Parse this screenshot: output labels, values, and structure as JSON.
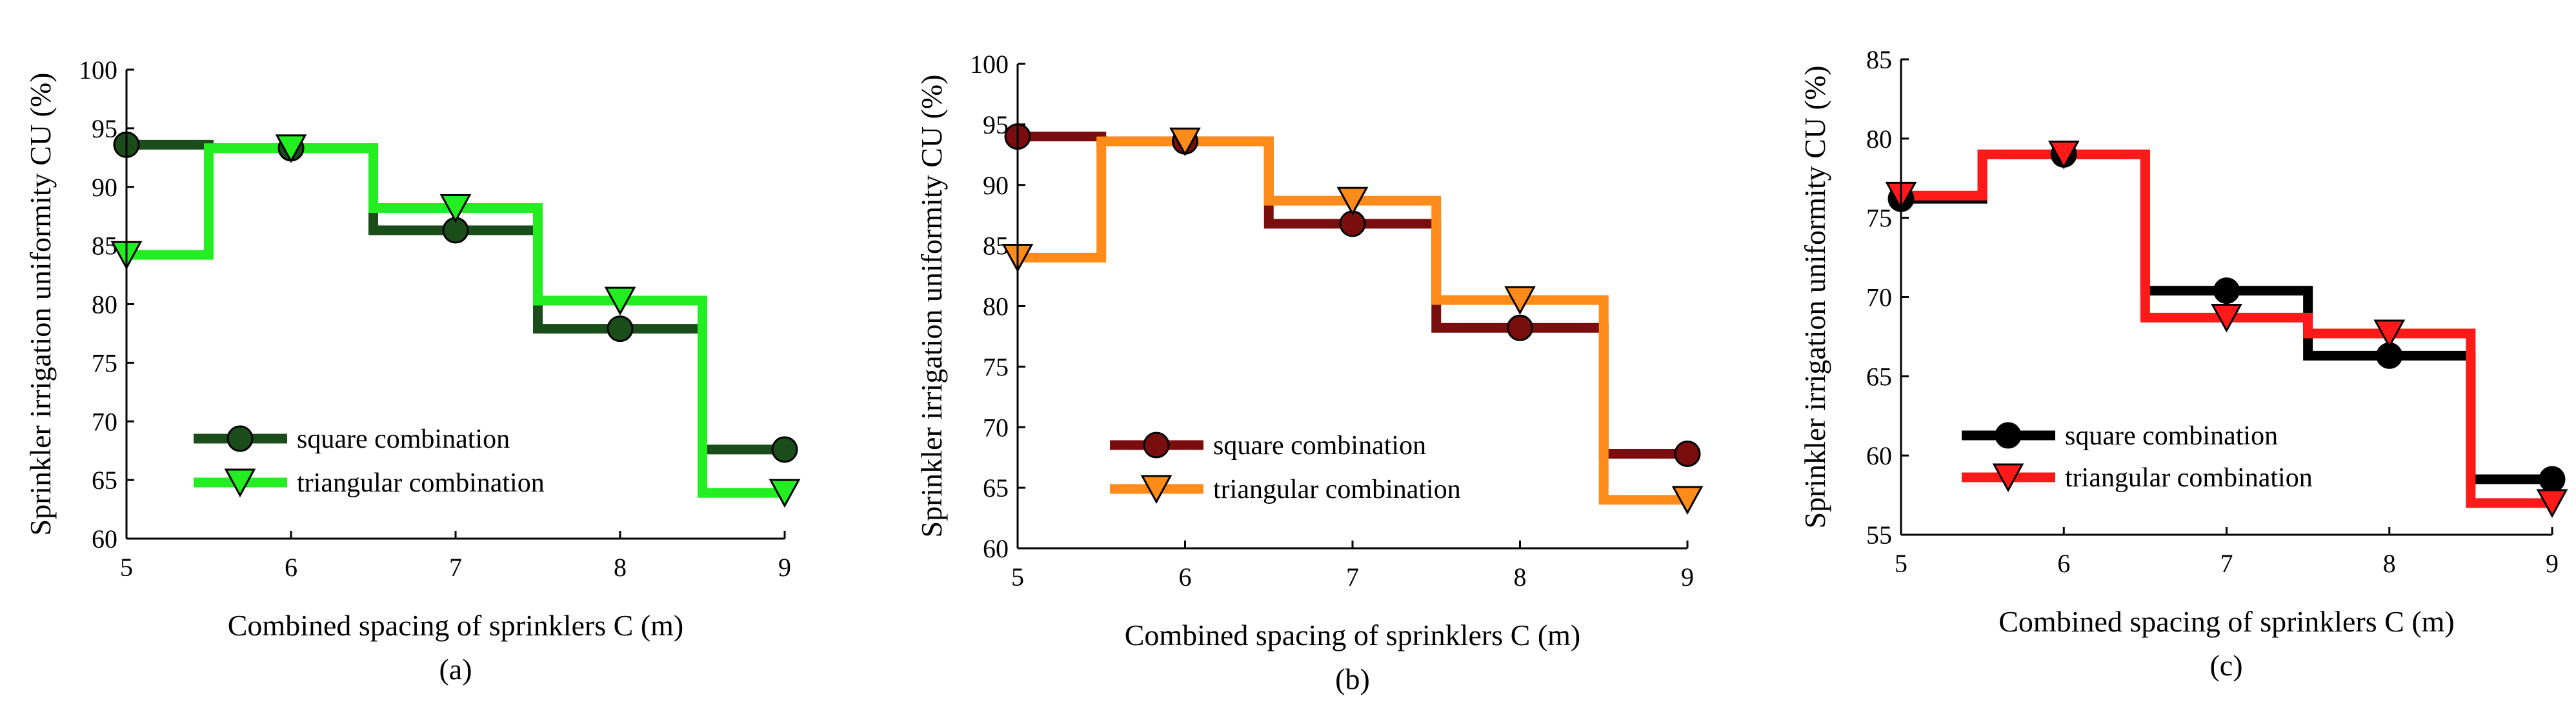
{
  "figure": {
    "xlabel": "Combined spacing of sprinklers C (m)",
    "ylabel": "Sprinkler irrigation uniformity CU (%)"
  },
  "chart_data": [
    {
      "type": "line",
      "step": "mid",
      "panel_label": "(a)",
      "xlabel": "Combined spacing of sprinklers C (m)",
      "ylabel": "Sprinkler irrigation uniformity CU (%)",
      "xlim": [
        5,
        9
      ],
      "ylim": [
        60,
        100
      ],
      "xticks": [
        5,
        6,
        7,
        8,
        9
      ],
      "yticks": [
        60,
        65,
        70,
        75,
        80,
        85,
        90,
        95,
        100
      ],
      "legend_position": "lower-left",
      "x": [
        5,
        6,
        7,
        8,
        9
      ],
      "series": [
        {
          "name": "square combination",
          "marker": "circle",
          "color": "#1b4d1b",
          "values": [
            93.6,
            93.3,
            86.3,
            77.9,
            67.6
          ]
        },
        {
          "name": "triangular combination",
          "marker": "triangle-down",
          "color": "#22ee22",
          "values": [
            84.2,
            93.3,
            88.2,
            80.3,
            63.9
          ]
        }
      ]
    },
    {
      "type": "line",
      "step": "mid",
      "panel_label": "(b)",
      "xlabel": "Combined spacing of sprinklers C (m)",
      "ylabel": "Sprinkler irrigation uniformity CU (%)",
      "xlim": [
        5,
        9
      ],
      "ylim": [
        60,
        100
      ],
      "xticks": [
        5,
        6,
        7,
        8,
        9
      ],
      "yticks": [
        60,
        65,
        70,
        75,
        80,
        85,
        90,
        95,
        100
      ],
      "legend_position": "lower-left",
      "x": [
        5,
        6,
        7,
        8,
        9
      ],
      "series": [
        {
          "name": "square combination",
          "marker": "circle",
          "color": "#7a0d0d",
          "values": [
            94.0,
            93.6,
            86.8,
            78.2,
            67.8
          ]
        },
        {
          "name": "triangular combination",
          "marker": "triangle-down",
          "color": "#ff8c1a",
          "values": [
            84.0,
            93.6,
            88.7,
            80.5,
            64.0
          ]
        }
      ]
    },
    {
      "type": "line",
      "step": "mid",
      "panel_label": "(c)",
      "xlabel": "Combined spacing of sprinklers C (m)",
      "ylabel": "Sprinkler irrigation uniformity CU (%)",
      "xlim": [
        5,
        9
      ],
      "ylim": [
        55,
        85
      ],
      "xticks": [
        5,
        6,
        7,
        8,
        9
      ],
      "yticks": [
        55,
        60,
        65,
        70,
        75,
        80,
        85
      ],
      "legend_position": "lower-left",
      "x": [
        5,
        6,
        7,
        8,
        9
      ],
      "series": [
        {
          "name": "square combination",
          "marker": "circle",
          "color": "#000000",
          "values": [
            76.2,
            79.0,
            70.4,
            66.3,
            58.5
          ]
        },
        {
          "name": "triangular combination",
          "marker": "triangle-down",
          "color": "#ff1a1a",
          "values": [
            76.4,
            79.0,
            68.7,
            67.7,
            57.0
          ]
        }
      ]
    }
  ]
}
